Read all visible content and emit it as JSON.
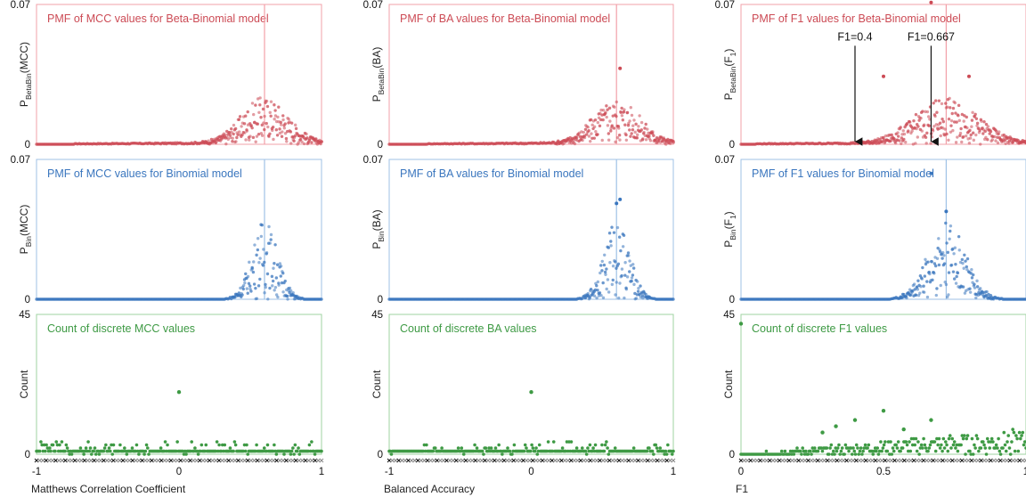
{
  "colors": {
    "red": "#cc4b55",
    "red_light": "#f2a0a8",
    "blue": "#3a76be",
    "blue_light": "#9fc2e6",
    "green": "#3e9a44",
    "green_light": "#9fd3a2"
  },
  "chart_data": [
    {
      "id": "mcc-betabin",
      "type": "scatter",
      "title": "PMF of MCC values for Beta-Binomial model",
      "ylabel": "P",
      "ylabel_sub": "BetaBin",
      "ylabel_tail": "(MCC)",
      "ylim": [
        0,
        0.07
      ],
      "ytick_labels": [
        "0",
        "0.07"
      ],
      "xlim": [
        -1,
        1
      ],
      "vline_x": 0.6,
      "peak": 0.6,
      "max_y": 0.023,
      "spread": 0.16,
      "tail": 0.0012,
      "color": "#cc4b55"
    },
    {
      "id": "ba-betabin",
      "type": "scatter",
      "title": "PMF of BA values for Beta-Binomial model",
      "ylabel": "P",
      "ylabel_sub": "BetaBin",
      "ylabel_tail": "(BA)",
      "ylim": [
        0,
        0.07
      ],
      "ytick_labels": [
        "0",
        "0.07"
      ],
      "xlim": [
        -1,
        1
      ],
      "vline_x": 0.6,
      "peak": 0.6,
      "max_y": 0.022,
      "spread": 0.16,
      "tail": 0.0012,
      "outliers": [
        {
          "x": 0.625,
          "y": 0.038
        }
      ],
      "color": "#cc4b55"
    },
    {
      "id": "f1-betabin",
      "type": "scatter",
      "title": "PMF of F1 values for Beta-Binomial model",
      "ylabel": "P",
      "ylabel_sub": "BetaBin",
      "ylabel_tail": "(F",
      "ylabel_sub2": "1",
      "ylabel_tail2": ")",
      "ylim": [
        0,
        0.07
      ],
      "ytick_labels": [
        "0",
        "0.07"
      ],
      "xlim": [
        0,
        1
      ],
      "vline_x": 0.72,
      "peak": 0.72,
      "max_y": 0.022,
      "spread": 0.11,
      "tail": 0.0012,
      "outliers": [
        {
          "x": 0.667,
          "y": 0.071
        },
        {
          "x": 0.5,
          "y": 0.034
        },
        {
          "x": 0.8,
          "y": 0.034
        }
      ],
      "annotations": [
        {
          "label": "F1=0.4",
          "x": 0.4,
          "y_text": 0.052,
          "y_tip": 0.0
        },
        {
          "label": "F1=0.667",
          "x": 0.667,
          "y_text": 0.052,
          "y_tip": 0.0
        }
      ],
      "color": "#cc4b55"
    },
    {
      "id": "mcc-bin",
      "type": "scatter",
      "title": "PMF of MCC values for Binomial model",
      "ylabel": "P",
      "ylabel_sub": "Bin",
      "ylabel_tail": "(MCC)",
      "ylim": [
        0,
        0.07
      ],
      "ytick_labels": [
        "0",
        "0.07"
      ],
      "xlim": [
        -1,
        1
      ],
      "vline_x": 0.6,
      "peak": 0.6,
      "max_y": 0.04,
      "spread": 0.09,
      "tail": 0.0,
      "color": "#3a76be"
    },
    {
      "id": "ba-bin",
      "type": "scatter",
      "title": "PMF of BA values for Binomial model",
      "ylabel": "P",
      "ylabel_sub": "Bin",
      "ylabel_tail": "(BA)",
      "ylim": [
        0,
        0.07
      ],
      "ytick_labels": [
        "0",
        "0.07"
      ],
      "xlim": [
        -1,
        1
      ],
      "vline_x": 0.6,
      "peak": 0.6,
      "max_y": 0.04,
      "spread": 0.09,
      "tail": 0.0,
      "outliers": [
        {
          "x": 0.625,
          "y": 0.05
        },
        {
          "x": 0.6,
          "y": 0.048
        }
      ],
      "color": "#3a76be"
    },
    {
      "id": "f1-bin",
      "type": "scatter",
      "title": "PMF of F1 values for Binomial model",
      "ylabel": "P",
      "ylabel_sub": "Bin",
      "ylabel_tail": "(F",
      "ylabel_sub2": "1",
      "ylabel_tail2": ")",
      "ylim": [
        0,
        0.07
      ],
      "ytick_labels": [
        "0",
        "0.07"
      ],
      "xlim": [
        0,
        1
      ],
      "vline_x": 0.72,
      "peak": 0.72,
      "max_y": 0.04,
      "spread": 0.065,
      "tail": 0.0,
      "outliers": [
        {
          "x": 0.667,
          "y": 0.063
        },
        {
          "x": 0.72,
          "y": 0.044
        }
      ],
      "color": "#3a76be"
    },
    {
      "id": "mcc-count",
      "type": "scatter",
      "title": "Count of discrete MCC values",
      "ylabel": "Count",
      "ylim": [
        0,
        45
      ],
      "ytick_labels": [
        "0",
        "45"
      ],
      "xlim": [
        -1,
        1
      ],
      "xtick_labels": [
        "-1",
        "0",
        "1"
      ],
      "xtick_values": [
        -1,
        0,
        1
      ],
      "xlabel": "Matthews Correlation Coefficient",
      "max_count": 4,
      "outliers": [
        {
          "x": 0.0,
          "y": 20
        }
      ],
      "color": "#3e9a44"
    },
    {
      "id": "ba-count",
      "type": "scatter",
      "title": "Count of discrete BA values",
      "ylabel": "Count",
      "ylim": [
        0,
        45
      ],
      "ytick_labels": [
        "0",
        "45"
      ],
      "xlim": [
        -1,
        1
      ],
      "xtick_labels": [
        "-1",
        "0",
        "1"
      ],
      "xtick_values": [
        -1,
        0,
        1
      ],
      "xlabel": "Balanced Accuracy",
      "max_count": 4,
      "outliers": [
        {
          "x": 0.0,
          "y": 20
        }
      ],
      "color": "#3e9a44"
    },
    {
      "id": "f1-count",
      "type": "scatter",
      "title": "Count of discrete F1 values",
      "ylabel": "Count",
      "ylim": [
        0,
        45
      ],
      "ytick_labels": [
        "0",
        "45"
      ],
      "xlim": [
        0,
        1
      ],
      "xtick_labels": [
        "0",
        "0.5",
        "1"
      ],
      "xtick_values": [
        0,
        0.5,
        1
      ],
      "xlabel": "F1",
      "outliers": [
        {
          "x": 0.0,
          "y": 42
        },
        {
          "x": 0.667,
          "y": 11
        },
        {
          "x": 0.5,
          "y": 14
        },
        {
          "x": 0.4,
          "y": 11
        },
        {
          "x": 0.333,
          "y": 9
        },
        {
          "x": 0.571,
          "y": 8
        },
        {
          "x": 0.286,
          "y": 7
        }
      ],
      "f1_shape": true,
      "color": "#3e9a44"
    }
  ]
}
